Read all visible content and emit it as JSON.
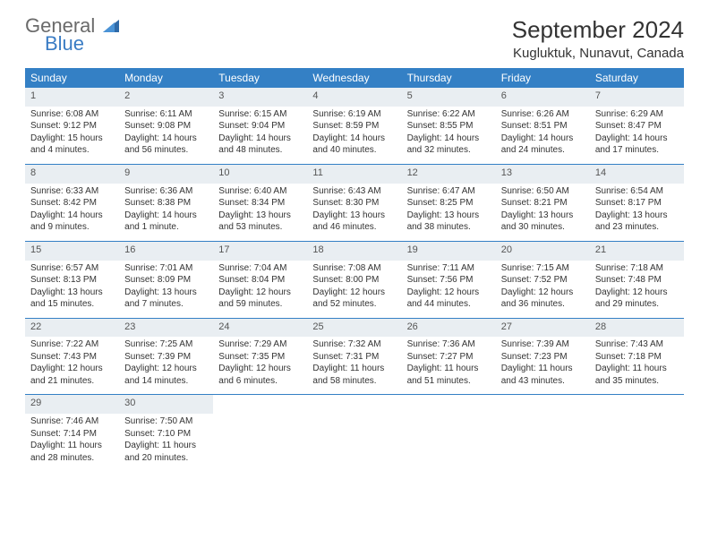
{
  "brand": {
    "name1": "General",
    "name2": "Blue"
  },
  "title": "September 2024",
  "location": "Kugluktuk, Nunavut, Canada",
  "colors": {
    "header_bg": "#3480c5",
    "header_text": "#ffffff",
    "daynum_bg": "#e9eef2",
    "brand_gray": "#6a6a6a",
    "brand_blue": "#3a7cc4",
    "text": "#333333",
    "border": "#3480c5"
  },
  "day_headers": [
    "Sunday",
    "Monday",
    "Tuesday",
    "Wednesday",
    "Thursday",
    "Friday",
    "Saturday"
  ],
  "weeks": [
    [
      {
        "num": "1",
        "sunrise": "Sunrise: 6:08 AM",
        "sunset": "Sunset: 9:12 PM",
        "d1": "Daylight: 15 hours",
        "d2": "and 4 minutes."
      },
      {
        "num": "2",
        "sunrise": "Sunrise: 6:11 AM",
        "sunset": "Sunset: 9:08 PM",
        "d1": "Daylight: 14 hours",
        "d2": "and 56 minutes."
      },
      {
        "num": "3",
        "sunrise": "Sunrise: 6:15 AM",
        "sunset": "Sunset: 9:04 PM",
        "d1": "Daylight: 14 hours",
        "d2": "and 48 minutes."
      },
      {
        "num": "4",
        "sunrise": "Sunrise: 6:19 AM",
        "sunset": "Sunset: 8:59 PM",
        "d1": "Daylight: 14 hours",
        "d2": "and 40 minutes."
      },
      {
        "num": "5",
        "sunrise": "Sunrise: 6:22 AM",
        "sunset": "Sunset: 8:55 PM",
        "d1": "Daylight: 14 hours",
        "d2": "and 32 minutes."
      },
      {
        "num": "6",
        "sunrise": "Sunrise: 6:26 AM",
        "sunset": "Sunset: 8:51 PM",
        "d1": "Daylight: 14 hours",
        "d2": "and 24 minutes."
      },
      {
        "num": "7",
        "sunrise": "Sunrise: 6:29 AM",
        "sunset": "Sunset: 8:47 PM",
        "d1": "Daylight: 14 hours",
        "d2": "and 17 minutes."
      }
    ],
    [
      {
        "num": "8",
        "sunrise": "Sunrise: 6:33 AM",
        "sunset": "Sunset: 8:42 PM",
        "d1": "Daylight: 14 hours",
        "d2": "and 9 minutes."
      },
      {
        "num": "9",
        "sunrise": "Sunrise: 6:36 AM",
        "sunset": "Sunset: 8:38 PM",
        "d1": "Daylight: 14 hours",
        "d2": "and 1 minute."
      },
      {
        "num": "10",
        "sunrise": "Sunrise: 6:40 AM",
        "sunset": "Sunset: 8:34 PM",
        "d1": "Daylight: 13 hours",
        "d2": "and 53 minutes."
      },
      {
        "num": "11",
        "sunrise": "Sunrise: 6:43 AM",
        "sunset": "Sunset: 8:30 PM",
        "d1": "Daylight: 13 hours",
        "d2": "and 46 minutes."
      },
      {
        "num": "12",
        "sunrise": "Sunrise: 6:47 AM",
        "sunset": "Sunset: 8:25 PM",
        "d1": "Daylight: 13 hours",
        "d2": "and 38 minutes."
      },
      {
        "num": "13",
        "sunrise": "Sunrise: 6:50 AM",
        "sunset": "Sunset: 8:21 PM",
        "d1": "Daylight: 13 hours",
        "d2": "and 30 minutes."
      },
      {
        "num": "14",
        "sunrise": "Sunrise: 6:54 AM",
        "sunset": "Sunset: 8:17 PM",
        "d1": "Daylight: 13 hours",
        "d2": "and 23 minutes."
      }
    ],
    [
      {
        "num": "15",
        "sunrise": "Sunrise: 6:57 AM",
        "sunset": "Sunset: 8:13 PM",
        "d1": "Daylight: 13 hours",
        "d2": "and 15 minutes."
      },
      {
        "num": "16",
        "sunrise": "Sunrise: 7:01 AM",
        "sunset": "Sunset: 8:09 PM",
        "d1": "Daylight: 13 hours",
        "d2": "and 7 minutes."
      },
      {
        "num": "17",
        "sunrise": "Sunrise: 7:04 AM",
        "sunset": "Sunset: 8:04 PM",
        "d1": "Daylight: 12 hours",
        "d2": "and 59 minutes."
      },
      {
        "num": "18",
        "sunrise": "Sunrise: 7:08 AM",
        "sunset": "Sunset: 8:00 PM",
        "d1": "Daylight: 12 hours",
        "d2": "and 52 minutes."
      },
      {
        "num": "19",
        "sunrise": "Sunrise: 7:11 AM",
        "sunset": "Sunset: 7:56 PM",
        "d1": "Daylight: 12 hours",
        "d2": "and 44 minutes."
      },
      {
        "num": "20",
        "sunrise": "Sunrise: 7:15 AM",
        "sunset": "Sunset: 7:52 PM",
        "d1": "Daylight: 12 hours",
        "d2": "and 36 minutes."
      },
      {
        "num": "21",
        "sunrise": "Sunrise: 7:18 AM",
        "sunset": "Sunset: 7:48 PM",
        "d1": "Daylight: 12 hours",
        "d2": "and 29 minutes."
      }
    ],
    [
      {
        "num": "22",
        "sunrise": "Sunrise: 7:22 AM",
        "sunset": "Sunset: 7:43 PM",
        "d1": "Daylight: 12 hours",
        "d2": "and 21 minutes."
      },
      {
        "num": "23",
        "sunrise": "Sunrise: 7:25 AM",
        "sunset": "Sunset: 7:39 PM",
        "d1": "Daylight: 12 hours",
        "d2": "and 14 minutes."
      },
      {
        "num": "24",
        "sunrise": "Sunrise: 7:29 AM",
        "sunset": "Sunset: 7:35 PM",
        "d1": "Daylight: 12 hours",
        "d2": "and 6 minutes."
      },
      {
        "num": "25",
        "sunrise": "Sunrise: 7:32 AM",
        "sunset": "Sunset: 7:31 PM",
        "d1": "Daylight: 11 hours",
        "d2": "and 58 minutes."
      },
      {
        "num": "26",
        "sunrise": "Sunrise: 7:36 AM",
        "sunset": "Sunset: 7:27 PM",
        "d1": "Daylight: 11 hours",
        "d2": "and 51 minutes."
      },
      {
        "num": "27",
        "sunrise": "Sunrise: 7:39 AM",
        "sunset": "Sunset: 7:23 PM",
        "d1": "Daylight: 11 hours",
        "d2": "and 43 minutes."
      },
      {
        "num": "28",
        "sunrise": "Sunrise: 7:43 AM",
        "sunset": "Sunset: 7:18 PM",
        "d1": "Daylight: 11 hours",
        "d2": "and 35 minutes."
      }
    ],
    [
      {
        "num": "29",
        "sunrise": "Sunrise: 7:46 AM",
        "sunset": "Sunset: 7:14 PM",
        "d1": "Daylight: 11 hours",
        "d2": "and 28 minutes."
      },
      {
        "num": "30",
        "sunrise": "Sunrise: 7:50 AM",
        "sunset": "Sunset: 7:10 PM",
        "d1": "Daylight: 11 hours",
        "d2": "and 20 minutes."
      },
      null,
      null,
      null,
      null,
      null
    ]
  ]
}
